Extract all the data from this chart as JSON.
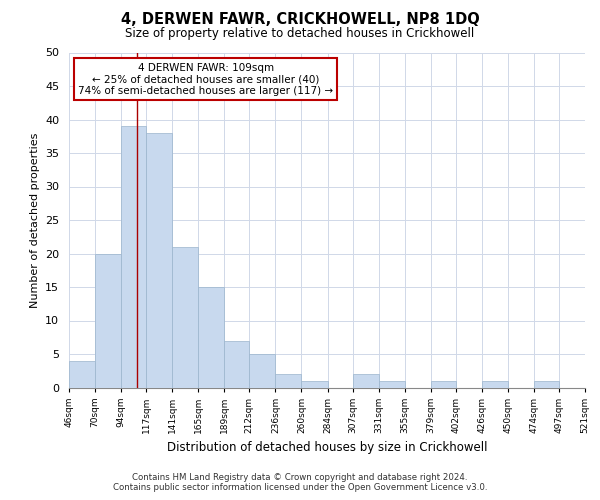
{
  "title": "4, DERWEN FAWR, CRICKHOWELL, NP8 1DQ",
  "subtitle": "Size of property relative to detached houses in Crickhowell",
  "xlabel": "Distribution of detached houses by size in Crickhowell",
  "ylabel": "Number of detached properties",
  "bar_values": [
    4,
    20,
    39,
    38,
    21,
    15,
    7,
    5,
    2,
    1,
    0,
    2,
    1,
    0,
    1,
    0,
    1,
    0,
    1,
    0
  ],
  "bin_edges": [
    46,
    70,
    94,
    117,
    141,
    165,
    189,
    212,
    236,
    260,
    284,
    307,
    331,
    355,
    379,
    402,
    426,
    450,
    474,
    497,
    521
  ],
  "tick_labels": [
    "46sqm",
    "70sqm",
    "94sqm",
    "117sqm",
    "141sqm",
    "165sqm",
    "189sqm",
    "212sqm",
    "236sqm",
    "260sqm",
    "284sqm",
    "307sqm",
    "331sqm",
    "355sqm",
    "379sqm",
    "402sqm",
    "426sqm",
    "450sqm",
    "474sqm",
    "497sqm",
    "521sqm"
  ],
  "bar_color": "#c8d9ee",
  "bar_edge_color": "#9bb4cc",
  "vline_x": 109,
  "vline_color": "#aa0000",
  "ylim": [
    0,
    50
  ],
  "yticks": [
    0,
    5,
    10,
    15,
    20,
    25,
    30,
    35,
    40,
    45,
    50
  ],
  "annotation_title": "4 DERWEN FAWR: 109sqm",
  "annotation_line1": "← 25% of detached houses are smaller (40)",
  "annotation_line2": "74% of semi-detached houses are larger (117) →",
  "annotation_box_color": "#ffffff",
  "annotation_box_edge": "#bb0000",
  "footer_line1": "Contains HM Land Registry data © Crown copyright and database right 2024.",
  "footer_line2": "Contains public sector information licensed under the Open Government Licence v3.0.",
  "background_color": "#ffffff",
  "grid_color": "#d0d8e8"
}
